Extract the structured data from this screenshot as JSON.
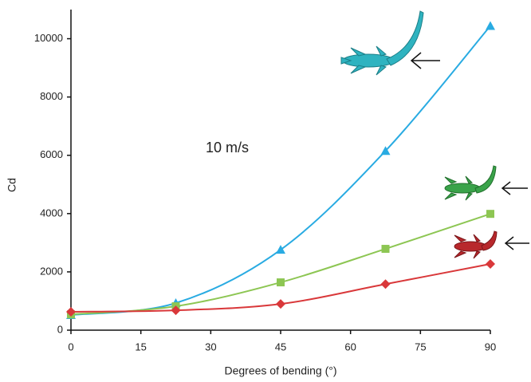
{
  "chart_data": {
    "type": "line",
    "annotation": "10 m/s",
    "x_label": "Degrees of bending (°)",
    "y_label": "Cd",
    "x": [
      0,
      22.5,
      45,
      67.5,
      90
    ],
    "xlim": [
      0,
      90
    ],
    "xticks": [
      0,
      15,
      30,
      45,
      60,
      75,
      90
    ],
    "ylim": [
      0,
      11000
    ],
    "yticks": [
      0,
      2000,
      4000,
      6000,
      8000,
      10000
    ],
    "smooth": true,
    "series": [
      {
        "color": "#29abe2",
        "marker": "triangle",
        "values": [
          520,
          930,
          2760,
          6150,
          10440
        ]
      },
      {
        "color": "#8dc653",
        "marker": "square",
        "values": [
          540,
          820,
          1640,
          2790,
          3990
        ]
      },
      {
        "color": "#d9383a",
        "marker": "diamond",
        "values": [
          630,
          680,
          900,
          1580,
          2270
        ]
      }
    ]
  }
}
